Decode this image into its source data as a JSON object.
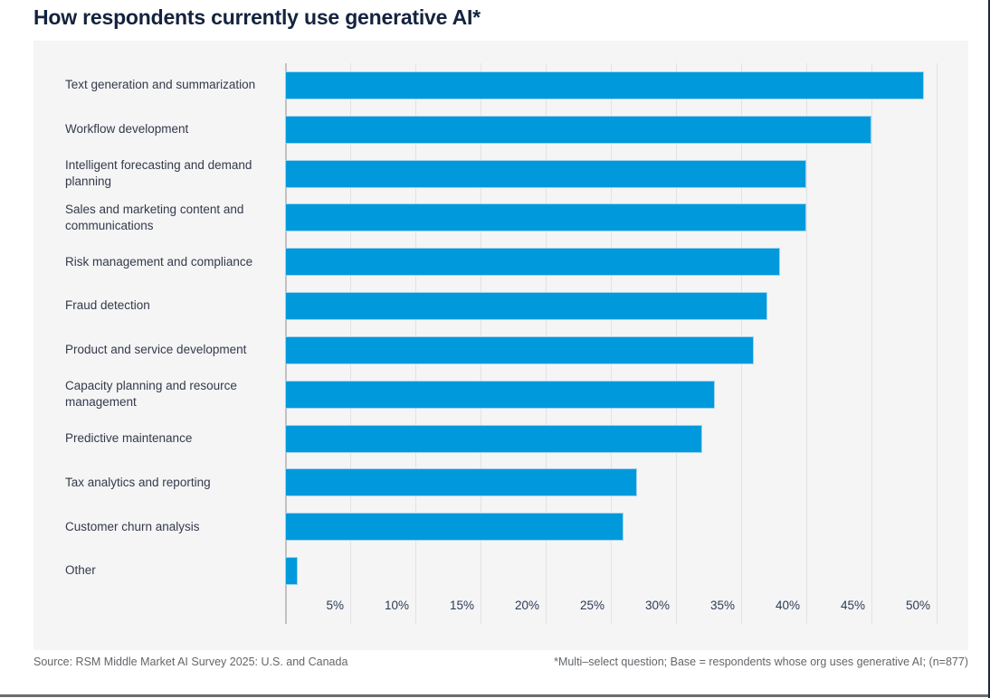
{
  "page": {
    "title": "How respondents currently use generative AI*"
  },
  "footer": {
    "source": "Source: RSM Middle Market AI Survey 2025: U.S. and Canada",
    "note": "*Multi–select question; Base = respondents whose org uses generative AI; (n=877)"
  },
  "colors": {
    "bar_blue": "#0099dc",
    "bar_border": "#9ed3ee",
    "title_navy": "#14233e",
    "panel_bg": "#f5f5f6",
    "gridline": "#e2e2e4",
    "axis_line": "#c2c2c4",
    "footer_gray": "#63666a"
  },
  "chart_data": {
    "type": "bar",
    "orientation": "horizontal",
    "title": "How respondents currently use generative AI*",
    "unit": "%",
    "categories": [
      "Text generation and summarization",
      "Workflow development",
      "Intelligent forecasting and demand planning",
      "Sales and marketing content and communications",
      "Risk management and compliance",
      "Fraud detection",
      "Product and service development",
      "Capacity planning and resource management",
      "Predictive maintenance",
      "Tax analytics and reporting",
      "Customer churn analysis",
      "Other"
    ],
    "values": [
      49,
      45,
      40,
      40,
      38,
      37,
      36,
      33,
      32,
      27,
      26,
      1
    ],
    "x_ticks": [
      "5%",
      "10%",
      "15%",
      "20%",
      "25%",
      "30%",
      "35%",
      "40%",
      "45%",
      "50%"
    ],
    "x_tick_values": [
      5,
      10,
      15,
      20,
      25,
      30,
      35,
      40,
      45,
      50
    ],
    "xlim": [
      0,
      52.4
    ],
    "grid": "vertical-only",
    "legend": "none",
    "bar_labels": "none"
  }
}
